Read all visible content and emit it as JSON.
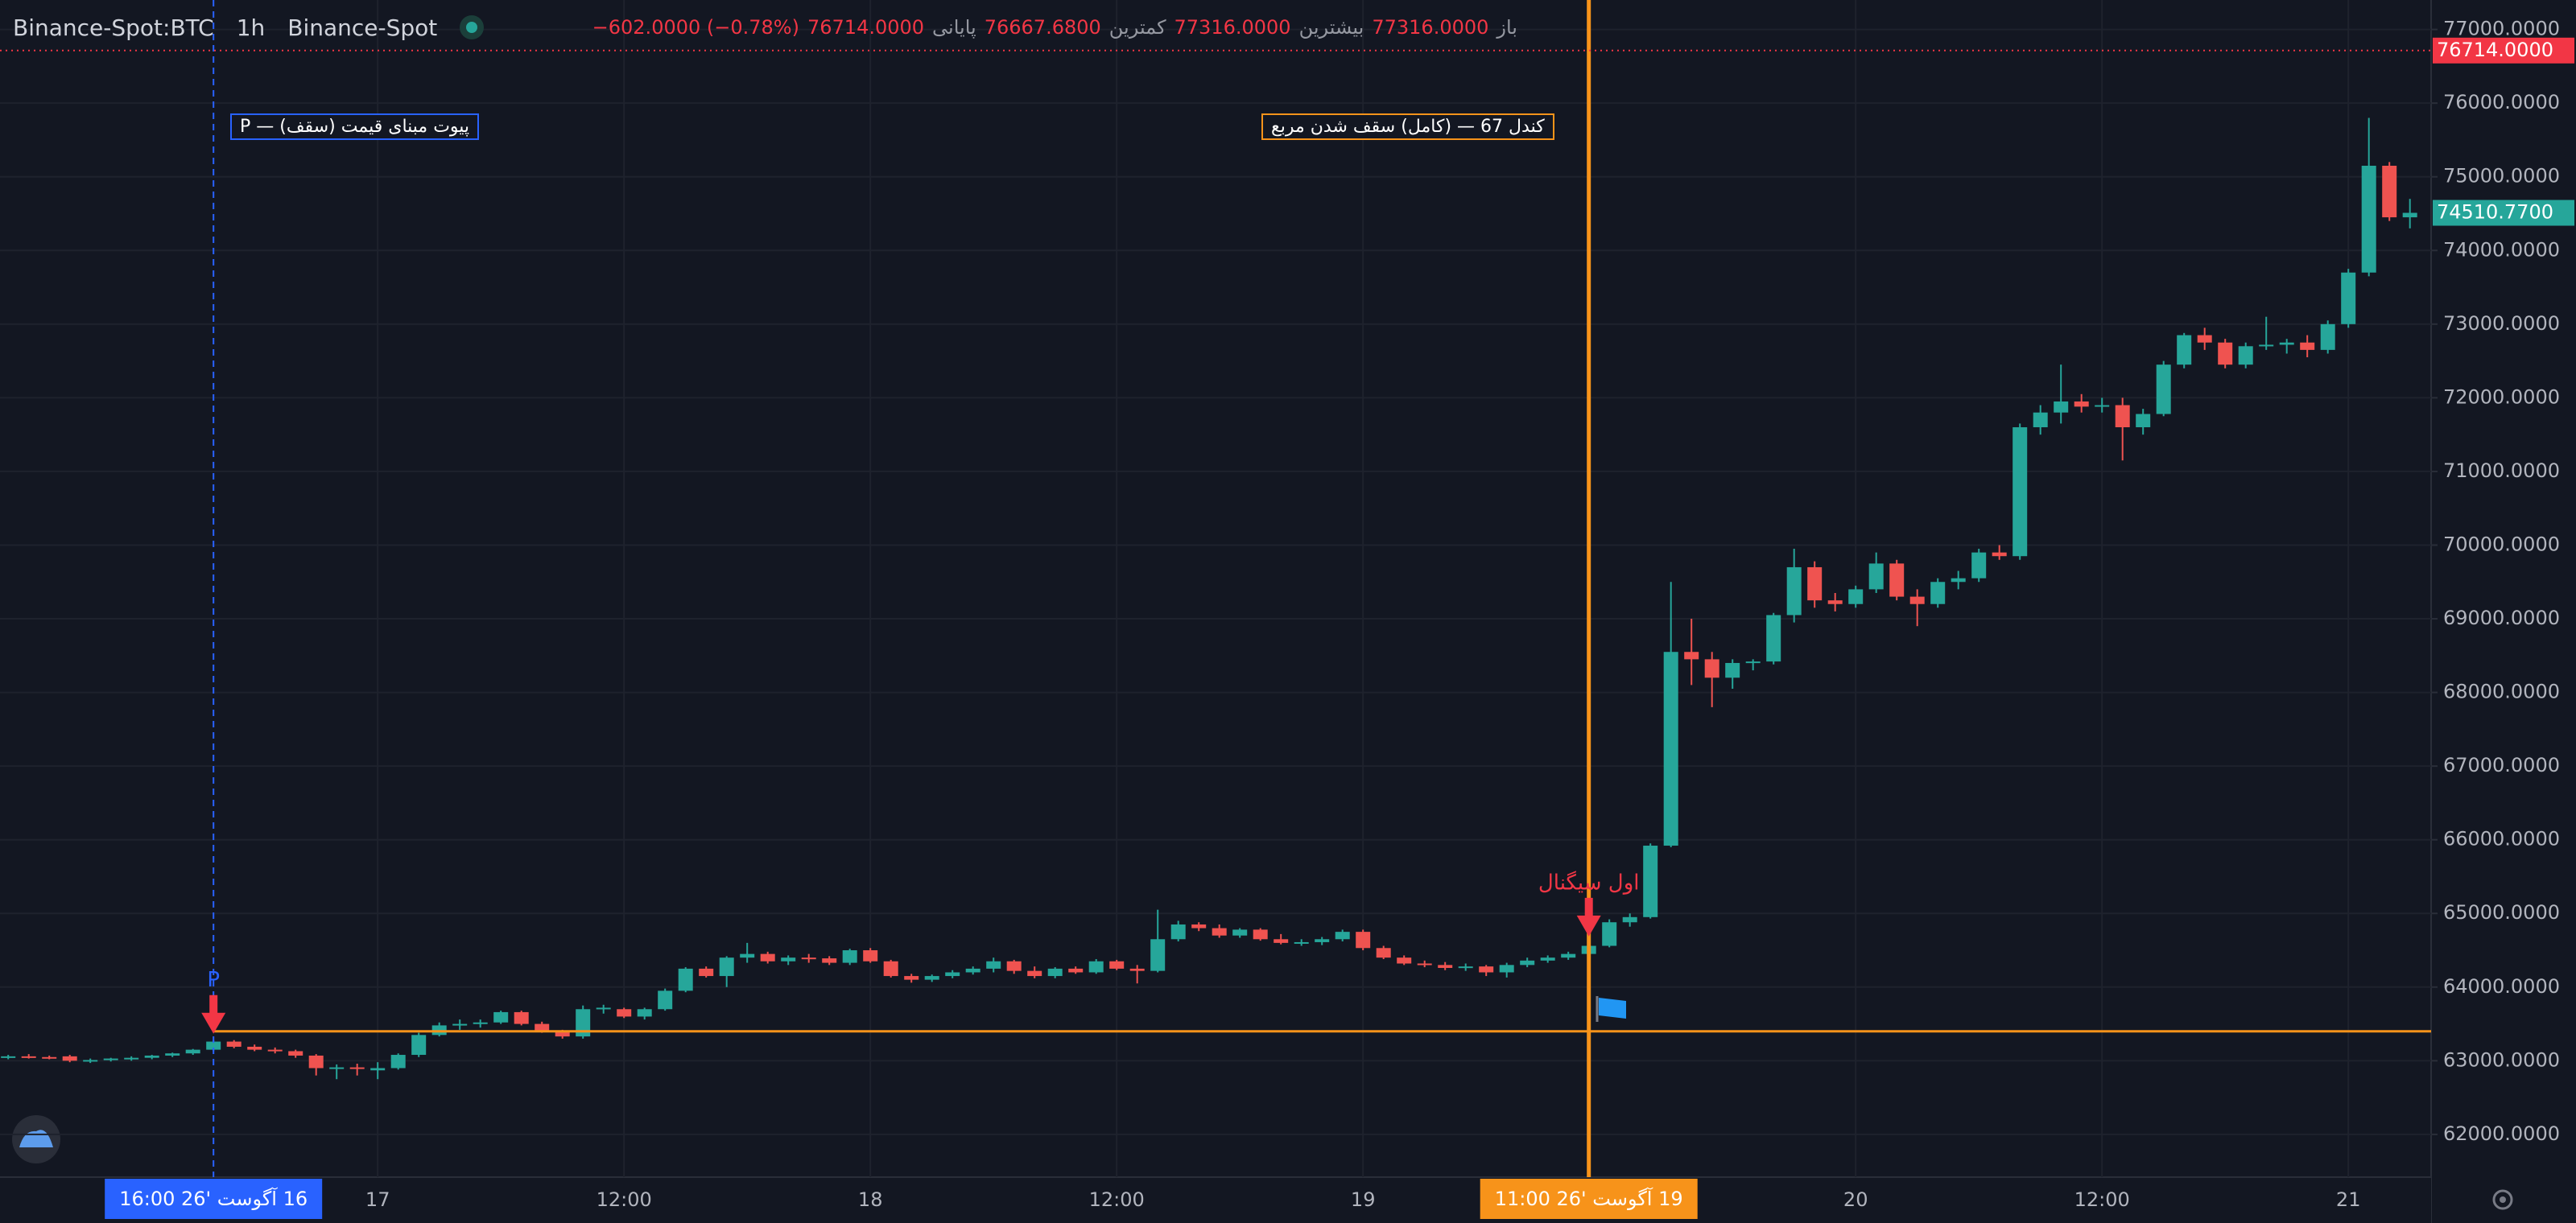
{
  "chart_data": {
    "type": "candlestick",
    "title": "Binance-Spot:BTC",
    "interval": "1h",
    "exchange": "Binance-Spot",
    "legend_items": [
      {
        "label": "باز",
        "value": "77316.0000"
      },
      {
        "label": "بیشترین",
        "value": "77316.0000"
      },
      {
        "label": "کمترین",
        "value": "76667.6800"
      },
      {
        "label": "پایانی",
        "value": "76714.0000"
      }
    ],
    "change": "−602.0000 (−0.78%)",
    "up_color": "#26a69a",
    "down_color": "#ef5350",
    "grid": true,
    "ylim": [
      61420,
      77400
    ],
    "yticks": [
      {
        "value": 62000,
        "label": "62000.0000"
      },
      {
        "value": 63000,
        "label": "63000.0000"
      },
      {
        "value": 64000,
        "label": "64000.0000"
      },
      {
        "value": 65000,
        "label": "65000.0000"
      },
      {
        "value": 66000,
        "label": "66000.0000"
      },
      {
        "value": 67000,
        "label": "67000.0000"
      },
      {
        "value": 68000,
        "label": "68000.0000"
      },
      {
        "value": 69000,
        "label": "69000.0000"
      },
      {
        "value": 70000,
        "label": "70000.0000"
      },
      {
        "value": 71000,
        "label": "71000.0000"
      },
      {
        "value": 72000,
        "label": "72000.0000"
      },
      {
        "value": 73000,
        "label": "73000.0000"
      },
      {
        "value": 74000,
        "label": "74000.0000"
      },
      {
        "value": 75000,
        "label": "75000.0000"
      },
      {
        "value": 76000,
        "label": "76000.0000"
      },
      {
        "value": 77000,
        "label": "77000.0000"
      }
    ],
    "categories": [
      null,
      null,
      null,
      null,
      null,
      null,
      null,
      null,
      null,
      null,
      null,
      null,
      null,
      null,
      null,
      null,
      null,
      null,
      "17",
      null,
      null,
      null,
      null,
      null,
      null,
      null,
      null,
      null,
      null,
      null,
      "12:00",
      null,
      null,
      null,
      null,
      null,
      null,
      null,
      null,
      null,
      null,
      null,
      "18",
      null,
      null,
      null,
      null,
      null,
      null,
      null,
      null,
      null,
      null,
      null,
      "12:00",
      null,
      null,
      null,
      null,
      null,
      null,
      null,
      null,
      null,
      null,
      null,
      "19",
      null,
      null,
      null,
      null,
      null,
      null,
      null,
      null,
      null,
      null,
      null,
      null,
      null,
      null,
      null,
      null,
      null,
      null,
      null,
      null,
      null,
      null,
      null,
      "20",
      null,
      null,
      null,
      null,
      null,
      null,
      null,
      null,
      null,
      null,
      null,
      "12:00",
      null,
      null,
      null,
      null,
      null,
      null,
      null,
      null,
      null,
      null,
      null,
      "21",
      null,
      null,
      null
    ],
    "ohlc": [
      [
        63050,
        63080,
        63020,
        63060
      ],
      [
        63060,
        63090,
        63030,
        63050
      ],
      [
        63050,
        63070,
        63020,
        63040
      ],
      [
        63060,
        63080,
        62980,
        63000
      ],
      [
        63000,
        63030,
        62970,
        63010
      ],
      [
        63010,
        63040,
        62990,
        63030
      ],
      [
        63030,
        63060,
        63000,
        63040
      ],
      [
        63040,
        63080,
        63020,
        63070
      ],
      [
        63070,
        63110,
        63050,
        63100
      ],
      [
        63100,
        63160,
        63080,
        63150
      ],
      [
        63150,
        63280,
        63130,
        63260
      ],
      [
        63260,
        63280,
        63170,
        63190
      ],
      [
        63190,
        63220,
        63130,
        63150
      ],
      [
        63150,
        63180,
        63100,
        63130
      ],
      [
        63130,
        63150,
        63040,
        63070
      ],
      [
        63070,
        63090,
        62800,
        62900
      ],
      [
        62900,
        62950,
        62750,
        62910
      ],
      [
        62910,
        62960,
        62800,
        62900
      ],
      [
        62870,
        62980,
        62750,
        62900
      ],
      [
        62900,
        63100,
        62880,
        63080
      ],
      [
        63080,
        63380,
        63050,
        63350
      ],
      [
        63350,
        63520,
        63330,
        63480
      ],
      [
        63480,
        63560,
        63420,
        63500
      ],
      [
        63500,
        63560,
        63450,
        63520
      ],
      [
        63520,
        63680,
        63500,
        63660
      ],
      [
        63660,
        63680,
        63480,
        63500
      ],
      [
        63500,
        63530,
        63380,
        63400
      ],
      [
        63400,
        63420,
        63300,
        63330
      ],
      [
        63330,
        63750,
        63300,
        63700
      ],
      [
        63700,
        63760,
        63640,
        63720
      ],
      [
        63700,
        63720,
        63580,
        63600
      ],
      [
        63600,
        63720,
        63560,
        63700
      ],
      [
        63700,
        63980,
        63680,
        63950
      ],
      [
        63950,
        64270,
        63930,
        64250
      ],
      [
        64250,
        64280,
        64130,
        64150
      ],
      [
        64150,
        64420,
        64000,
        64400
      ],
      [
        64400,
        64600,
        64330,
        64450
      ],
      [
        64450,
        64480,
        64320,
        64350
      ],
      [
        64350,
        64430,
        64300,
        64400
      ],
      [
        64400,
        64450,
        64330,
        64390
      ],
      [
        64390,
        64420,
        64300,
        64330
      ],
      [
        64330,
        64520,
        64300,
        64500
      ],
      [
        64500,
        64530,
        64330,
        64350
      ],
      [
        64350,
        64370,
        64130,
        64150
      ],
      [
        64150,
        64180,
        64060,
        64100
      ],
      [
        64100,
        64170,
        64070,
        64150
      ],
      [
        64150,
        64230,
        64120,
        64200
      ],
      [
        64200,
        64280,
        64170,
        64250
      ],
      [
        64250,
        64400,
        64200,
        64350
      ],
      [
        64350,
        64370,
        64180,
        64220
      ],
      [
        64220,
        64280,
        64120,
        64150
      ],
      [
        64150,
        64270,
        64120,
        64250
      ],
      [
        64250,
        64280,
        64180,
        64200
      ],
      [
        64200,
        64380,
        64180,
        64350
      ],
      [
        64350,
        64370,
        64230,
        64250
      ],
      [
        64250,
        64300,
        64050,
        64220
      ],
      [
        64220,
        65050,
        64200,
        64650
      ],
      [
        64650,
        64900,
        64620,
        64850
      ],
      [
        64850,
        64880,
        64760,
        64800
      ],
      [
        64800,
        64850,
        64670,
        64700
      ],
      [
        64700,
        64800,
        64670,
        64780
      ],
      [
        64780,
        64800,
        64630,
        64650
      ],
      [
        64650,
        64720,
        64580,
        64600
      ],
      [
        64600,
        64650,
        64560,
        64610
      ],
      [
        64610,
        64680,
        64570,
        64650
      ],
      [
        64650,
        64780,
        64620,
        64750
      ],
      [
        64750,
        64780,
        64500,
        64530
      ],
      [
        64530,
        64560,
        64380,
        64400
      ],
      [
        64400,
        64430,
        64300,
        64320
      ],
      [
        64320,
        64360,
        64270,
        64300
      ],
      [
        64300,
        64340,
        64230,
        64260
      ],
      [
        64260,
        64320,
        64220,
        64280
      ],
      [
        64280,
        64300,
        64150,
        64200
      ],
      [
        64200,
        64330,
        64130,
        64300
      ],
      [
        64300,
        64400,
        64270,
        64360
      ],
      [
        64360,
        64430,
        64330,
        64400
      ],
      [
        64400,
        64480,
        64370,
        64450
      ],
      [
        64450,
        64600,
        64420,
        64560
      ],
      [
        64560,
        64920,
        64540,
        64880
      ],
      [
        64880,
        65000,
        64820,
        64950
      ],
      [
        64950,
        65950,
        64930,
        65920
      ],
      [
        65920,
        69500,
        65900,
        68550
      ],
      [
        68550,
        69000,
        68100,
        68450
      ],
      [
        68450,
        68550,
        67800,
        68200
      ],
      [
        68200,
        68450,
        68050,
        68400
      ],
      [
        68400,
        68450,
        68300,
        68420
      ],
      [
        68420,
        69080,
        68380,
        69050
      ],
      [
        69050,
        69950,
        68950,
        69700
      ],
      [
        69700,
        69780,
        69150,
        69250
      ],
      [
        69250,
        69350,
        69100,
        69200
      ],
      [
        69200,
        69450,
        69150,
        69400
      ],
      [
        69400,
        69900,
        69350,
        69750
      ],
      [
        69750,
        69800,
        69250,
        69300
      ],
      [
        69300,
        69400,
        68900,
        69200
      ],
      [
        69200,
        69550,
        69150,
        69500
      ],
      [
        69500,
        69650,
        69400,
        69550
      ],
      [
        69550,
        69950,
        69500,
        69900
      ],
      [
        69900,
        70000,
        69800,
        69850
      ],
      [
        69850,
        71650,
        69800,
        71600
      ],
      [
        71600,
        71900,
        71500,
        71800
      ],
      [
        71800,
        72450,
        71650,
        71950
      ],
      [
        71950,
        72050,
        71800,
        71880
      ],
      [
        71880,
        72000,
        71800,
        71900
      ],
      [
        71900,
        72000,
        71150,
        71600
      ],
      [
        71600,
        71850,
        71500,
        71780
      ],
      [
        71780,
        72500,
        71750,
        72450
      ],
      [
        72450,
        72880,
        72400,
        72850
      ],
      [
        72850,
        72950,
        72650,
        72750
      ],
      [
        72750,
        72800,
        72400,
        72450
      ],
      [
        72450,
        72750,
        72400,
        72700
      ],
      [
        72700,
        73100,
        72650,
        72720
      ],
      [
        72720,
        72800,
        72600,
        72750
      ],
      [
        72750,
        72850,
        72550,
        72650
      ],
      [
        72650,
        73050,
        72600,
        73000
      ],
      [
        73000,
        73750,
        72950,
        73700
      ],
      [
        73700,
        75800,
        73650,
        75150
      ],
      [
        75150,
        75200,
        74400,
        74450
      ],
      [
        74450,
        74700,
        74300,
        74510.77
      ]
    ],
    "crosshairs": [
      {
        "category_index": 10,
        "label": "16:00 26' آگوست 16",
        "color": "#2962ff",
        "dashed": true
      },
      {
        "category_index": 77,
        "label": "11:00 26' آگوست 19",
        "color": "#f7931a",
        "dashed": false
      }
    ],
    "levels": [
      {
        "value": 63400,
        "color": "#f7931a",
        "from_index": 10
      }
    ],
    "price_labels": [
      {
        "value": 76714,
        "label": "76714.0000",
        "color": "#f23645",
        "dotted_line": true
      },
      {
        "value": 74510.77,
        "label": "74510.7700",
        "color": "#26a69a",
        "dotted_line": false
      }
    ],
    "signals": [
      {
        "category_index": 10,
        "text": "P",
        "color": "#2962ff"
      },
      {
        "category_index": 77,
        "text": "اول سیگنال",
        "color": "#f23645"
      }
    ],
    "annotations": [
      {
        "text": "پیوت مبنای قیمت (سقف) — P",
        "color": "#2962ff"
      },
      {
        "text": "مربع شدن سقف (کامل) — 67 کندل",
        "color": "#f7931a"
      }
    ]
  }
}
